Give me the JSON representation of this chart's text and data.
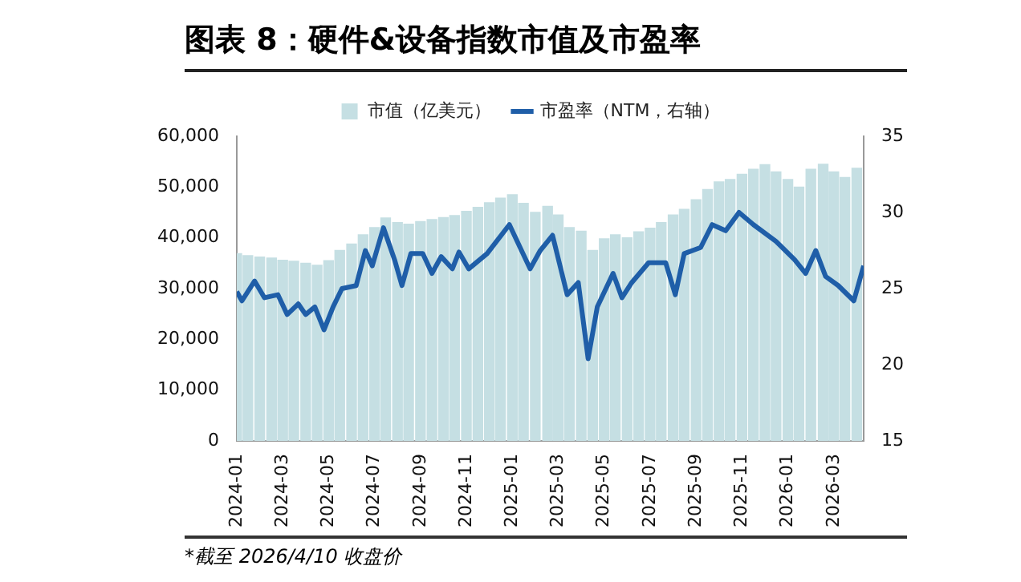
{
  "chart_data": {
    "type": "bar",
    "title": "图表 8：硬件&设备指数市值及市盈率",
    "annotations": [
      "*截至 2026/4/10 收盘价"
    ],
    "legend": "top",
    "grid": false,
    "xlim": [
      "2024-01",
      "2026-04-10"
    ],
    "xticks": [
      "2024-01",
      "2024-03",
      "2024-05",
      "2024-07",
      "2024-09",
      "2024-11",
      "2025-01",
      "2025-03",
      "2025-05",
      "2025-07",
      "2025-09",
      "2025-11",
      "2026-01",
      "2026-03"
    ],
    "ylim": [
      0,
      60000
    ],
    "yticks": [
      {
        "value": 0,
        "label": "0"
      },
      {
        "value": 10000,
        "label": "10,000"
      },
      {
        "value": 20000,
        "label": "20,000"
      },
      {
        "value": 30000,
        "label": "30,000"
      },
      {
        "value": 40000,
        "label": "40,000"
      },
      {
        "value": 50000,
        "label": "50,000"
      },
      {
        "value": 60000,
        "label": "60,000"
      }
    ],
    "y2lim": [
      15,
      35
    ],
    "y2ticks": [
      15,
      20,
      25,
      30,
      35
    ],
    "series": [
      {
        "name": "市值（亿美元）",
        "color": "#c5dfe3",
        "x": [
          "2024-01-01",
          "2024-01-16",
          "2024-02-01",
          "2024-02-16",
          "2024-03-01",
          "2024-03-16",
          "2024-04-01",
          "2024-04-16",
          "2024-05-01",
          "2024-05-16",
          "2024-06-01",
          "2024-06-16",
          "2024-07-01",
          "2024-07-16",
          "2024-08-01",
          "2024-08-16",
          "2024-09-01",
          "2024-09-16",
          "2024-10-01",
          "2024-10-16",
          "2024-11-01",
          "2024-11-16",
          "2024-12-01",
          "2024-12-16",
          "2025-01-01",
          "2025-01-16",
          "2025-02-01",
          "2025-02-16",
          "2025-03-01",
          "2025-03-16",
          "2025-04-01",
          "2025-04-16",
          "2025-05-01",
          "2025-05-16",
          "2025-06-01",
          "2025-06-16",
          "2025-07-01",
          "2025-07-16",
          "2025-08-01",
          "2025-08-16",
          "2025-09-01",
          "2025-09-16",
          "2025-10-01",
          "2025-10-16",
          "2025-11-01",
          "2025-11-16",
          "2025-12-01",
          "2025-12-16",
          "2026-01-01",
          "2026-01-16",
          "2026-02-01",
          "2026-02-16",
          "2026-03-01",
          "2026-03-16",
          "2026-04-01"
        ],
        "values": [
          36900,
          36500,
          36200,
          36000,
          35600,
          35400,
          35000,
          34600,
          35500,
          37500,
          38800,
          40600,
          42000,
          43900,
          43000,
          42700,
          43200,
          43600,
          44000,
          44400,
          45200,
          46000,
          46900,
          47800,
          48500,
          46800,
          45000,
          46200,
          44500,
          42000,
          41300,
          37500,
          39800,
          40600,
          40000,
          41200,
          41900,
          43000,
          44500,
          45600,
          47500,
          49500,
          51000,
          51500,
          52500,
          53500,
          54400,
          53000,
          51500,
          50000,
          53500,
          54500,
          53000,
          51900,
          53700
        ]
      },
      {
        "name": "市盈率（NTM，右轴）",
        "type": "line",
        "axis": "y2",
        "color": "#1f5ea8",
        "marker": "none",
        "line_style": "solid",
        "x": [
          "2024-01-01",
          "2024-01-08",
          "2024-01-25",
          "2024-02-07",
          "2024-02-24",
          "2024-03-07",
          "2024-03-22",
          "2024-04-01",
          "2024-04-13",
          "2024-04-25",
          "2024-05-07",
          "2024-05-19",
          "2024-06-07",
          "2024-06-19",
          "2024-06-28",
          "2024-07-13",
          "2024-07-28",
          "2024-08-07",
          "2024-08-19",
          "2024-09-04",
          "2024-09-16",
          "2024-09-28",
          "2024-10-13",
          "2024-10-22",
          "2024-11-04",
          "2024-11-28",
          "2024-12-28",
          "2025-01-25",
          "2025-02-07",
          "2025-02-22",
          "2025-03-13",
          "2025-03-28",
          "2025-04-10",
          "2025-04-22",
          "2025-05-13",
          "2025-05-25",
          "2025-06-07",
          "2025-06-29",
          "2025-07-22",
          "2025-08-04",
          "2025-08-16",
          "2025-09-07",
          "2025-09-22",
          "2025-10-10",
          "2025-10-28",
          "2025-11-16",
          "2025-12-16",
          "2026-01-10",
          "2026-01-25",
          "2026-02-07",
          "2026-02-19",
          "2026-03-07",
          "2026-03-28",
          "2026-04-10"
        ],
        "values": [
          24.8,
          24.2,
          25.5,
          24.4,
          24.6,
          23.3,
          24.0,
          23.3,
          23.8,
          22.3,
          23.8,
          25.0,
          25.2,
          27.5,
          26.5,
          29.0,
          26.9,
          25.2,
          27.3,
          27.3,
          26.0,
          27.1,
          26.3,
          27.4,
          26.3,
          27.3,
          29.2,
          26.3,
          27.5,
          28.5,
          24.6,
          25.4,
          20.4,
          23.8,
          26.0,
          24.4,
          25.4,
          26.7,
          26.7,
          24.6,
          27.3,
          27.7,
          29.2,
          28.8,
          30.0,
          29.2,
          28.1,
          26.9,
          26.0,
          27.5,
          25.8,
          25.2,
          24.2,
          26.5
        ]
      }
    ]
  }
}
